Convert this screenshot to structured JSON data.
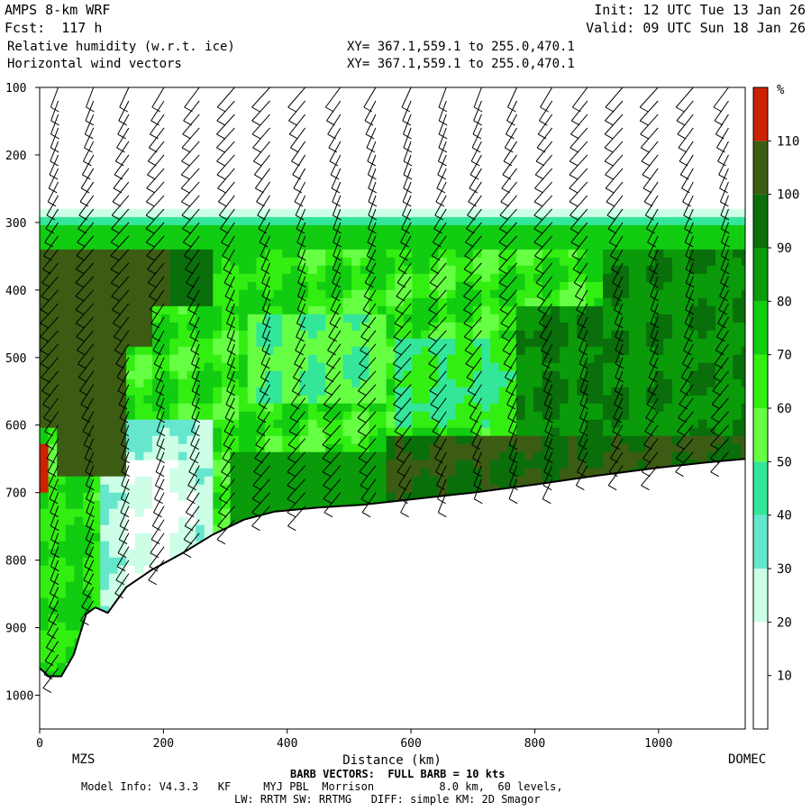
{
  "header": {
    "title": "AMPS 8-km WRF",
    "forecast": "Fcst:  117 h",
    "field1": "Relative humidity (w.r.t. ice)",
    "field2": "Horizontal wind vectors",
    "init": "Init: 12 UTC Tue 13 Jan 26",
    "valid": "Valid: 09 UTC Sun 18 Jan 26",
    "xy1": "XY= 367.1,559.1 to 255.0,470.1",
    "xy2": "XY= 367.1,559.1 to 255.0,470.1"
  },
  "chart_data": {
    "type": "heatmap",
    "xlabel": "Distance (km)",
    "x_ticks": [
      0,
      200,
      400,
      600,
      800,
      1000
    ],
    "xlim": [
      0,
      1140
    ],
    "y_ticks": [
      100,
      200,
      300,
      400,
      500,
      600,
      700,
      800,
      900,
      1000
    ],
    "ylim": [
      1050,
      100
    ],
    "start_label": "MZS",
    "end_label": "DOMEC",
    "colorbar_unit": "%",
    "colorbar_levels": [
      10,
      20,
      30,
      40,
      50,
      60,
      70,
      80,
      90,
      100,
      110
    ],
    "colorbar_colors": [
      "#ffffff",
      "#ffffff",
      "#ccffe6",
      "#66e6cc",
      "#33e699",
      "#66ff44",
      "#33ee11",
      "#11cc11",
      "#0a9a0a",
      "#0a6e0a",
      "#3c5c14",
      "#cc2200"
    ],
    "colors": {
      "rh_100_110": "#3c5c14",
      "rh_90_100": "#0a6e0a",
      "rh_80_90": "#0a9a0a",
      "rh_70_80": "#11cc11",
      "rh_60_70": "#33ee11",
      "rh_50_60": "#66ff44",
      "rh_40_50": "#33e699",
      "rh_30_40": "#66e6cc",
      "rh_20_30": "#ccffe6",
      "rh_gt110": "#cc2200"
    },
    "terrain": {
      "x": [
        0,
        15,
        35,
        55,
        75,
        90,
        110,
        140,
        180,
        230,
        280,
        330,
        380,
        450,
        520,
        600,
        700,
        800,
        900,
        1000,
        1080,
        1140
      ],
      "p": [
        960,
        972,
        972,
        940,
        880,
        870,
        878,
        840,
        815,
        790,
        762,
        740,
        728,
        722,
        718,
        710,
        700,
        688,
        675,
        663,
        655,
        650
      ]
    }
  },
  "footer": {
    "barb_note": "BARB VECTORS:  FULL BARB = 10 kts",
    "model_info": "Model Info: V4.3.3   KF     MYJ PBL  Morrison          8.0 km,  60 levels,",
    "physics": "LW: RRTM SW: RRTMG   DIFF: simple KM: 2D Smagor"
  }
}
